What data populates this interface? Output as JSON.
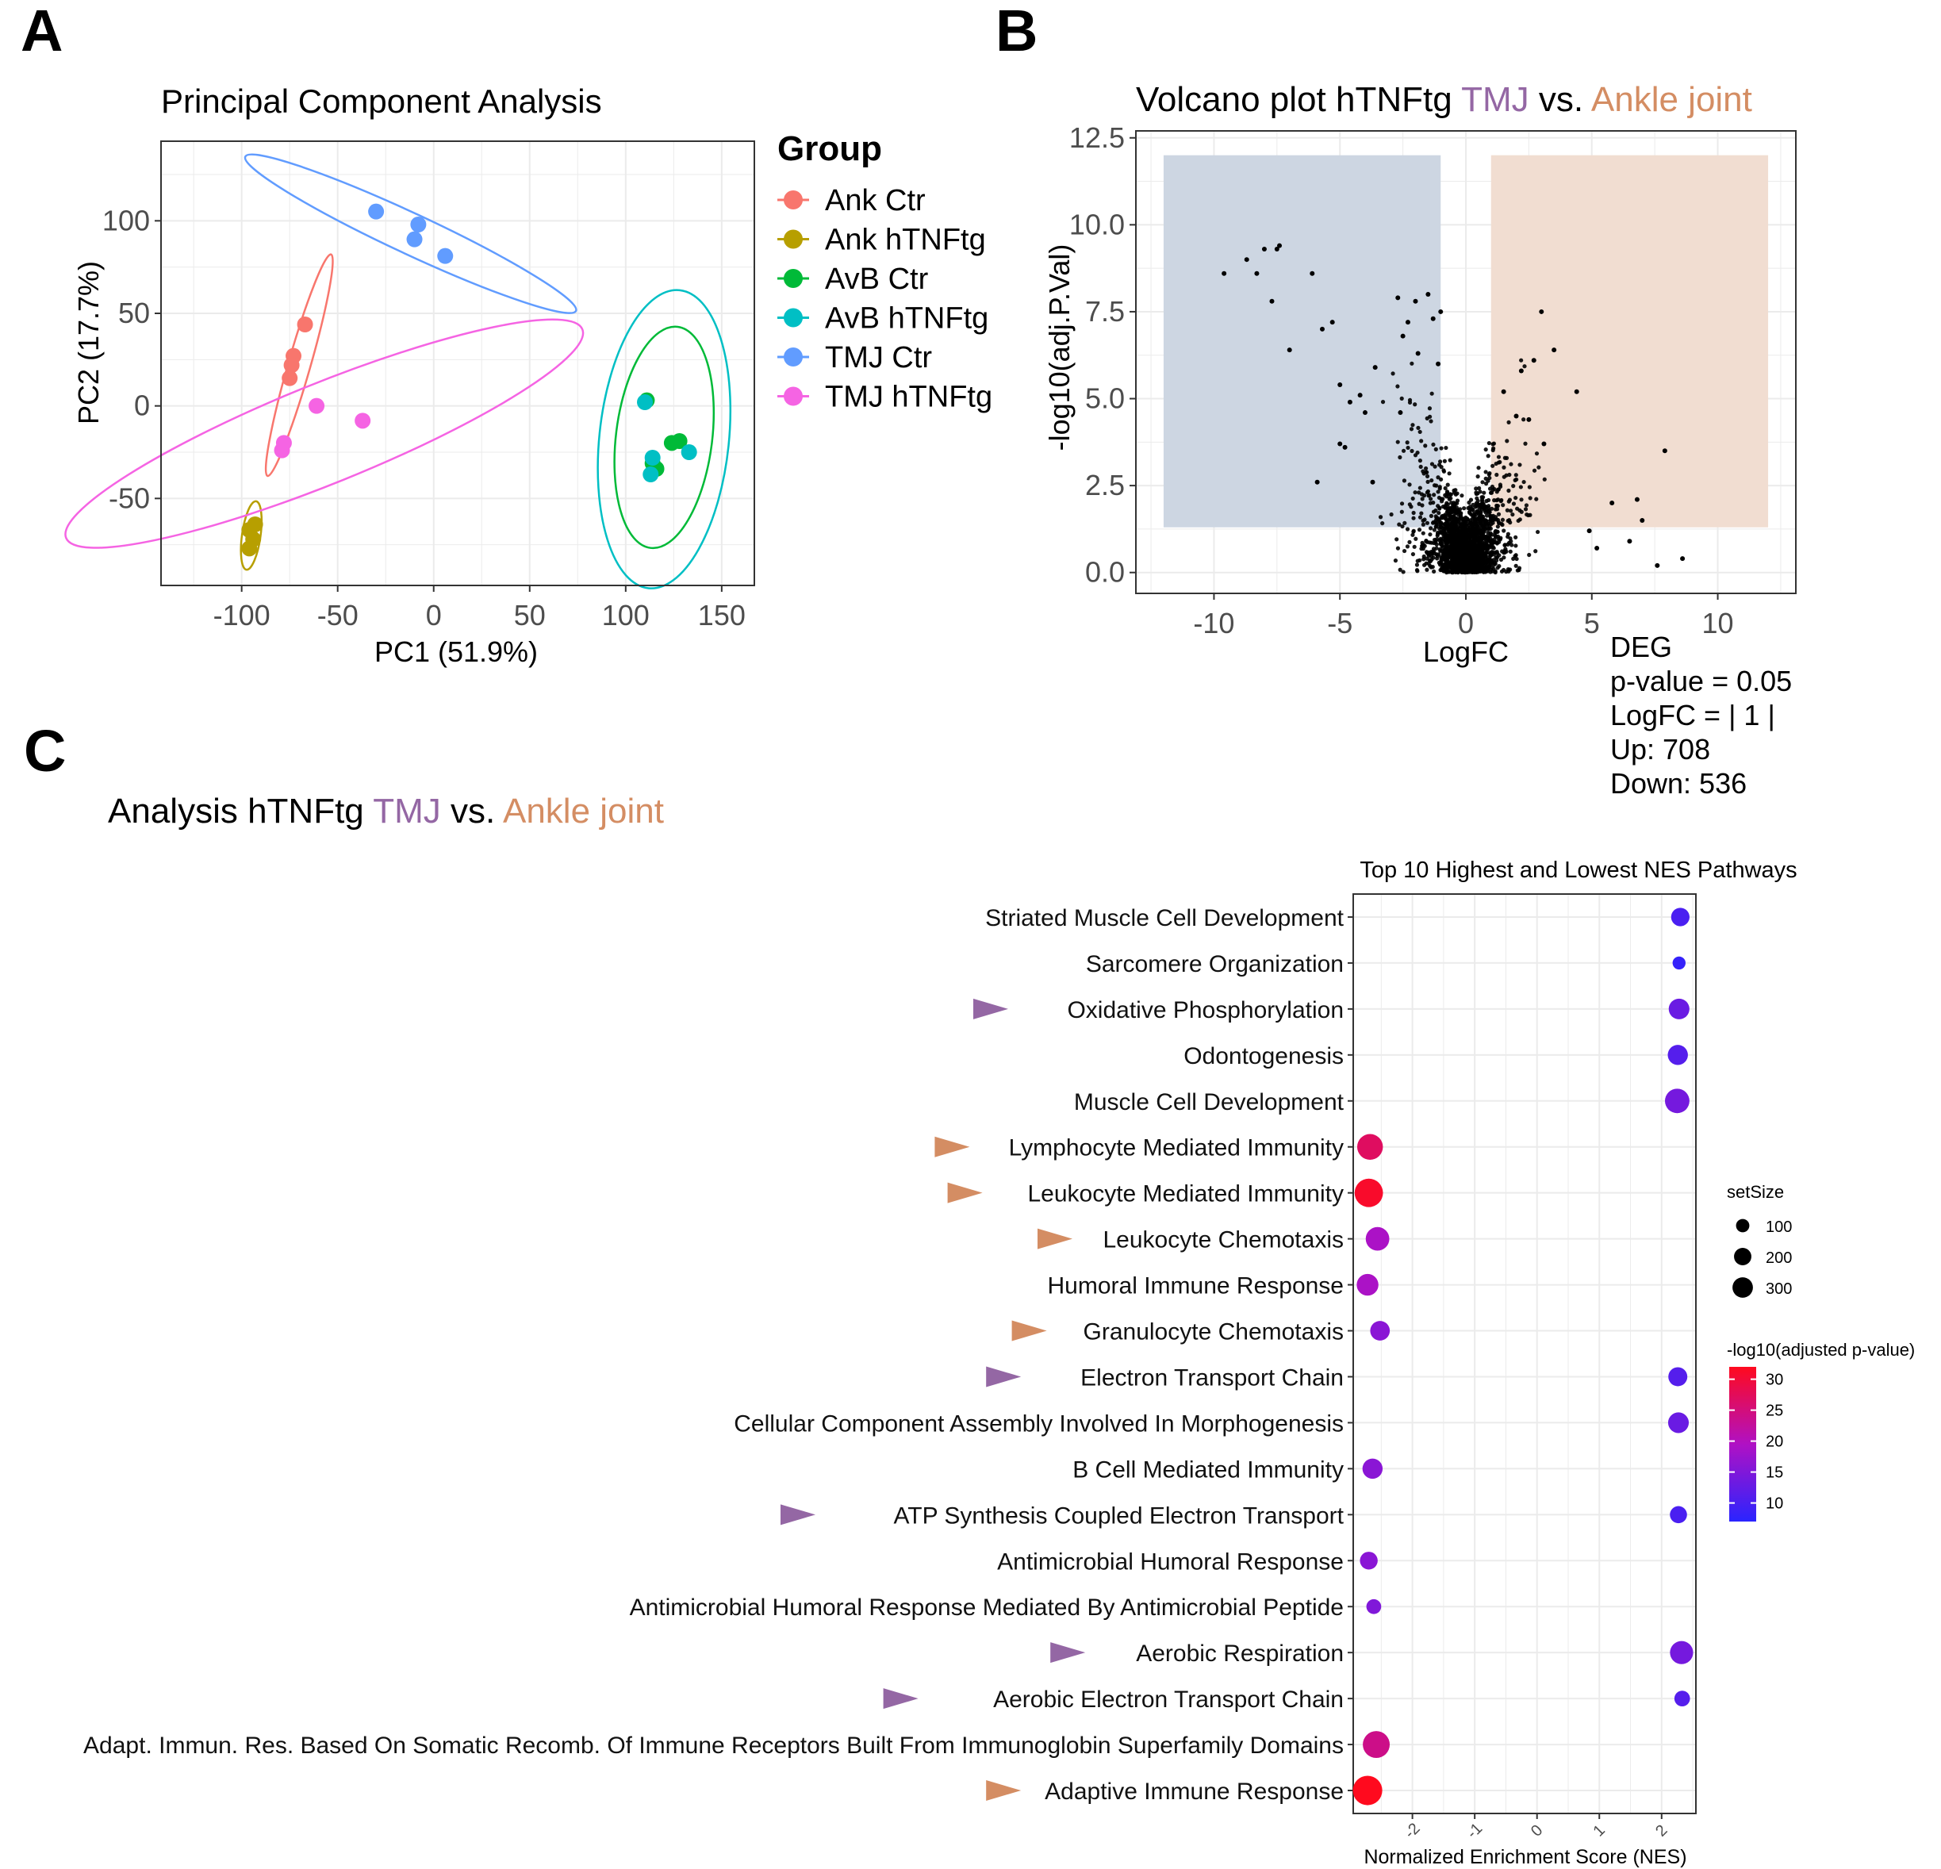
{
  "panels": {
    "a": "A",
    "b": "B",
    "c": "C"
  },
  "colors": {
    "tmj": "#9467a4",
    "ankle": "#d48d63",
    "grid": "#ebebeb",
    "axis": "#333333",
    "down_region": "#cdd6e2",
    "up_region": "#f1ddd1",
    "tick": "#4d4d4d"
  },
  "chart_data": [
    {
      "id": "pca",
      "type": "scatter",
      "title": "Principal Component Analysis",
      "xlabel": "PC1 (51.9%)",
      "ylabel": "PC2 (17.7%)",
      "xlim": [
        -142,
        167
      ],
      "ylim": [
        -97,
        143
      ],
      "xticks": [
        -100,
        -50,
        0,
        50,
        100,
        150
      ],
      "xtick_labels": [
        "-100",
        "-50",
        "0",
        "50",
        "100",
        "150"
      ],
      "yticks": [
        -50,
        0,
        50,
        100
      ],
      "ytick_labels": [
        "-50",
        "0",
        "50",
        "100"
      ],
      "legend_title": "Group",
      "legend_position": "right",
      "series": [
        {
          "name": "Ank Ctr",
          "color": "#f8766d",
          "points": [
            [
              -67,
              44
            ],
            [
              -73,
              27
            ],
            [
              -74,
              22
            ],
            [
              -75,
              15
            ]
          ],
          "ellipse": {
            "cx": -70,
            "cy": 22,
            "rx": 60,
            "ry": 6,
            "angle": 74
          }
        },
        {
          "name": "Ank hTNFtg",
          "color": "#b79f00",
          "points": [
            [
              -96,
              -67
            ],
            [
              -93,
              -64
            ],
            [
              -94,
              -72
            ],
            [
              -96,
              -77
            ]
          ],
          "ellipse": {
            "cx": -95,
            "cy": -70,
            "rx": 18,
            "ry": 5,
            "angle": 82
          }
        },
        {
          "name": "AvB Ctr",
          "color": "#00ba38",
          "points": [
            [
              111,
              3
            ],
            [
              124,
              -20
            ],
            [
              128,
              -19
            ],
            [
              116,
              -34
            ],
            [
              114,
              -31
            ]
          ],
          "ellipse": {
            "cx": 120,
            "cy": -17,
            "rx": 58,
            "ry": 26,
            "angle": 83
          }
        },
        {
          "name": "AvB hTNFtg",
          "color": "#00bfc4",
          "points": [
            [
              110,
              2
            ],
            [
              114,
              -28
            ],
            [
              133,
              -25
            ],
            [
              113,
              -37
            ]
          ],
          "ellipse": {
            "cx": 120,
            "cy": -18,
            "rx": 78,
            "ry": 35,
            "angle": 84
          }
        },
        {
          "name": "TMJ Ctr",
          "color": "#619cff",
          "points": [
            [
              -30,
              105
            ],
            [
              -8,
              98
            ],
            [
              -10,
              90
            ],
            [
              6,
              81
            ]
          ],
          "ellipse": {
            "cx": -12,
            "cy": 93,
            "rx": 95,
            "ry": 11,
            "angle": -25
          }
        },
        {
          "name": "TMJ hTNFtg",
          "color": "#f564e3",
          "points": [
            [
              -61,
              0
            ],
            [
              -37,
              -8
            ],
            [
              -78,
              -20
            ],
            [
              -79,
              -24
            ]
          ],
          "ellipse": {
            "cx": -57,
            "cy": -15,
            "rx": 145,
            "ry": 27,
            "angle": 22
          }
        }
      ]
    },
    {
      "id": "volcano",
      "type": "scatter",
      "title_prefix": "Volcano plot hTNFtg ",
      "title_tmj": "TMJ",
      "title_vs": " vs. ",
      "title_ankle": "Ankle joint",
      "xlabel": "LogFC",
      "ylabel": "-log10(adj.P.Val)",
      "xlim": [
        -13.1,
        13.1
      ],
      "ylim": [
        -0.6,
        12.7
      ],
      "xticks": [
        -10,
        -5,
        0,
        5,
        10
      ],
      "xtick_labels": [
        "-10",
        "-5",
        "0",
        "5",
        "10"
      ],
      "yticks": [
        0,
        2.5,
        5,
        7.5,
        10,
        12.5
      ],
      "ytick_labels": [
        "0.0",
        "2.5",
        "5.0",
        "7.5",
        "10.0",
        "12.5"
      ],
      "regions": [
        {
          "name": "down",
          "x": [
            -12,
            -1
          ],
          "y": [
            1.3,
            12
          ]
        },
        {
          "name": "up",
          "x": [
            1,
            12
          ],
          "y": [
            1.3,
            12
          ]
        }
      ],
      "points": [
        [
          -9.6,
          8.6
        ],
        [
          -8.7,
          9.0
        ],
        [
          -8.3,
          8.6
        ],
        [
          -8.0,
          9.3
        ],
        [
          -7.5,
          9.3
        ],
        [
          -7.4,
          9.4
        ],
        [
          -7.7,
          7.8
        ],
        [
          -6.1,
          8.6
        ],
        [
          -7.0,
          6.4
        ],
        [
          -5.7,
          7.0
        ],
        [
          -5.3,
          7.2
        ],
        [
          -5.0,
          5.4
        ],
        [
          -4.6,
          4.9
        ],
        [
          -4.2,
          5.1
        ],
        [
          -4.0,
          4.6
        ],
        [
          -5.0,
          3.7
        ],
        [
          -4.8,
          3.6
        ],
        [
          -5.9,
          2.6
        ],
        [
          -3.6,
          5.9
        ],
        [
          -2.7,
          7.9
        ],
        [
          -2.3,
          7.2
        ],
        [
          -2.0,
          7.8
        ],
        [
          -2.5,
          6.8
        ],
        [
          -1.9,
          6.3
        ],
        [
          -1.5,
          8.0
        ],
        [
          -1.3,
          7.3
        ],
        [
          -1.0,
          7.5
        ],
        [
          -1.1,
          6.0
        ],
        [
          -2.6,
          4.6
        ],
        [
          -3.7,
          2.6
        ],
        [
          3.0,
          7.5
        ],
        [
          2.7,
          6.1
        ],
        [
          3.5,
          6.4
        ],
        [
          4.4,
          5.2
        ],
        [
          2.2,
          5.8
        ],
        [
          2.0,
          4.5
        ],
        [
          1.5,
          5.2
        ],
        [
          2.5,
          4.4
        ],
        [
          3.1,
          3.7
        ],
        [
          5.8,
          2.0
        ],
        [
          6.8,
          2.1
        ],
        [
          7.0,
          1.5
        ],
        [
          7.9,
          3.5
        ],
        [
          7.6,
          0.2
        ],
        [
          8.6,
          0.4
        ],
        [
          5.2,
          0.7
        ],
        [
          6.5,
          0.9
        ],
        [
          4.9,
          1.2
        ]
      ],
      "legend": {
        "title": "DEG",
        "lines": [
          "p-value = 0.05",
          "LogFC = | 1 |",
          "Up: 708",
          "Down: 536"
        ]
      }
    },
    {
      "id": "gsea",
      "type": "scatter",
      "title_prefix": "Analysis hTNFtg ",
      "title_tmj": "TMJ",
      "title_vs": " vs. ",
      "title_ankle": "Ankle joint",
      "subtitle": "Top 10 Highest and Lowest NES Pathways",
      "xlabel": "Normalized Enrichment Score (NES)",
      "xlim": [
        -2.95,
        2.55
      ],
      "xticks": [
        -2,
        -1,
        0,
        1,
        2
      ],
      "xtick_labels": [
        "-2",
        "-1",
        "0",
        "1",
        "2"
      ],
      "size_legend": {
        "title": "setSize",
        "values": [
          100,
          200,
          300
        ],
        "labels": [
          "100",
          "200",
          "300"
        ]
      },
      "color_legend": {
        "title": "-log10(adjusted p-value)",
        "ticks": [
          30,
          25,
          20,
          15,
          10
        ],
        "labels": [
          "30",
          "25",
          "20",
          "15",
          "10"
        ],
        "range": [
          7,
          32
        ]
      },
      "pathways": [
        {
          "label": "Striated Muscle Cell Development",
          "nes": 2.3,
          "size": 110,
          "logp": 10,
          "marker": "none"
        },
        {
          "label": "Sarcomere Organization",
          "nes": 2.28,
          "size": 40,
          "logp": 8,
          "marker": "none"
        },
        {
          "label": "Oxidative Phosphorylation",
          "nes": 2.28,
          "size": 150,
          "logp": 13,
          "marker": "tmj"
        },
        {
          "label": "Odontogenesis",
          "nes": 2.26,
          "size": 140,
          "logp": 11,
          "marker": "none"
        },
        {
          "label": "Muscle Cell Development",
          "nes": 2.25,
          "size": 230,
          "logp": 14,
          "marker": "none"
        },
        {
          "label": "Lymphocyte Mediated Immunity",
          "nes": -2.68,
          "size": 260,
          "logp": 27,
          "marker": "ankle"
        },
        {
          "label": "Leukocyte Mediated Immunity",
          "nes": -2.7,
          "size": 330,
          "logp": 31,
          "marker": "ankle"
        },
        {
          "label": "Leukocyte Chemotaxis",
          "nes": -2.56,
          "size": 210,
          "logp": 19,
          "marker": "ankle"
        },
        {
          "label": "Humoral Immune Response",
          "nes": -2.72,
          "size": 170,
          "logp": 19,
          "marker": "none"
        },
        {
          "label": "Granulocyte Chemotaxis",
          "nes": -2.52,
          "size": 130,
          "logp": 16,
          "marker": "ankle"
        },
        {
          "label": "Electron Transport Chain",
          "nes": 2.26,
          "size": 120,
          "logp": 11,
          "marker": "tmj"
        },
        {
          "label": "Cellular Component Assembly Involved In Morphogenesis",
          "nes": 2.27,
          "size": 150,
          "logp": 13,
          "marker": "none"
        },
        {
          "label": "B Cell Mediated Immunity",
          "nes": -2.64,
          "size": 140,
          "logp": 16,
          "marker": "none"
        },
        {
          "label": "ATP Synthesis Coupled Electron Transport",
          "nes": 2.27,
          "size": 90,
          "logp": 10,
          "marker": "tmj"
        },
        {
          "label": "Antimicrobial Humoral Response",
          "nes": -2.7,
          "size": 100,
          "logp": 16,
          "marker": "none"
        },
        {
          "label": "Antimicrobial Humoral Response Mediated By Antimicrobial Peptide",
          "nes": -2.62,
          "size": 60,
          "logp": 15,
          "marker": "none"
        },
        {
          "label": "Aerobic Respiration",
          "nes": 2.32,
          "size": 200,
          "logp": 14,
          "marker": "tmj"
        },
        {
          "label": "Aerobic Electron Transport Chain",
          "nes": 2.33,
          "size": 70,
          "logp": 11,
          "marker": "tmj"
        },
        {
          "label": "Adapt. Immun. Res. Based On Somatic Recomb. Of Immune Receptors Built From Immunoglobin Superfamily Domains",
          "nes": -2.58,
          "size": 290,
          "logp": 24,
          "marker": "none"
        },
        {
          "label": "Adaptive Immune Response",
          "nes": -2.72,
          "size": 360,
          "logp": 32,
          "marker": "ankle"
        }
      ]
    }
  ]
}
